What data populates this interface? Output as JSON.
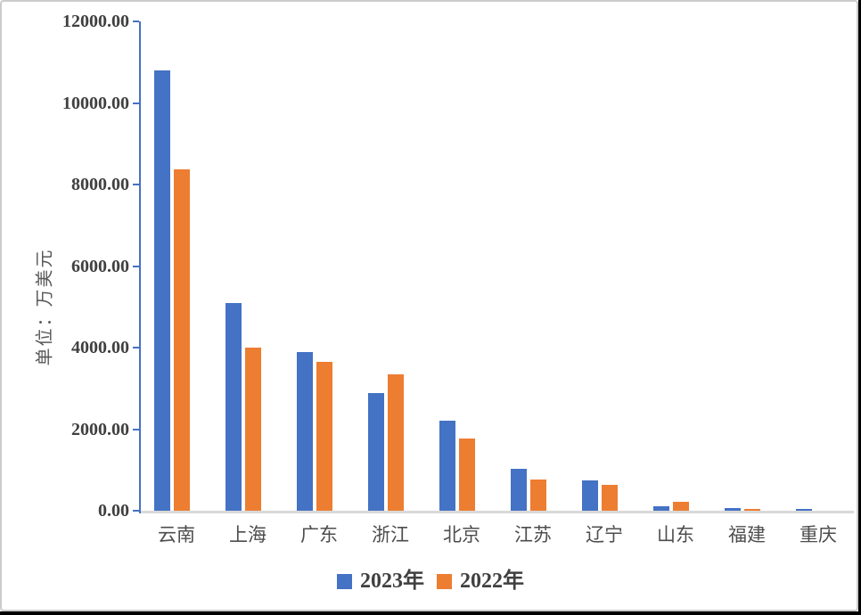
{
  "window": {
    "frame_border_color": "#cbcbcb",
    "edge_color": "#000000",
    "background": "#ffffff"
  },
  "chart_data": {
    "type": "bar",
    "title": "",
    "xlabel": "",
    "ylabel": "单位：万美元",
    "categories": [
      "云南",
      "上海",
      "广东",
      "浙江",
      "北京",
      "江苏",
      "辽宁",
      "山东",
      "福建",
      "重庆"
    ],
    "series": [
      {
        "name": "2023年",
        "color": "#4472C4",
        "values": [
          10800,
          5090,
          3880,
          2890,
          2210,
          1030,
          750,
          120,
          60,
          40
        ]
      },
      {
        "name": "2022年",
        "color": "#ED7D31",
        "values": [
          8380,
          4000,
          3660,
          3350,
          1770,
          770,
          640,
          225,
          35,
          10
        ]
      }
    ],
    "ylim": [
      0,
      12000
    ],
    "ytick_step": 2000,
    "ytick_labels": [
      "0.00",
      "2000.00",
      "4000.00",
      "6000.00",
      "8000.00",
      "10000.00",
      "12000.00"
    ],
    "grid": false,
    "legend_position": "bottom",
    "axis_line_color": "#4472C4",
    "baseline_color": "#D9D9D9",
    "tick_label_color": "#404040",
    "category_label_color": "#4d4d4d"
  }
}
